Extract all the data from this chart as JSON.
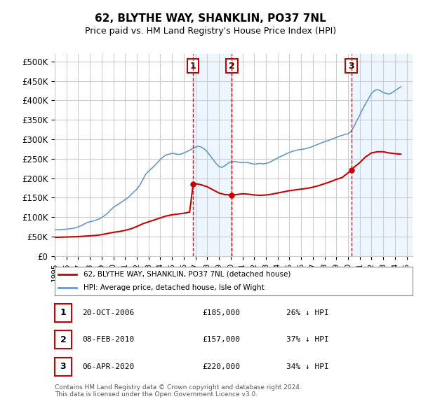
{
  "title": "62, BLYTHE WAY, SHANKLIN, PO37 7NL",
  "subtitle": "Price paid vs. HM Land Registry's House Price Index (HPI)",
  "ylabel_ticks": [
    "£0",
    "£50K",
    "£100K",
    "£150K",
    "£200K",
    "£250K",
    "£300K",
    "£350K",
    "£400K",
    "£450K",
    "£500K"
  ],
  "ytick_values": [
    0,
    50000,
    100000,
    150000,
    200000,
    250000,
    300000,
    350000,
    400000,
    450000,
    500000
  ],
  "ylim": [
    0,
    520000
  ],
  "xlim_start": 1995.0,
  "xlim_end": 2025.5,
  "transactions": [
    {
      "label": "1",
      "date": "20-OCT-2006",
      "price": 185000,
      "pct": "26%",
      "x": 2006.8
    },
    {
      "label": "2",
      "date": "08-FEB-2010",
      "price": 157000,
      "pct": "37%",
      "x": 2010.1
    },
    {
      "label": "3",
      "date": "06-APR-2020",
      "price": 220000,
      "pct": "34%",
      "x": 2020.27
    }
  ],
  "legend_property_label": "62, BLYTHE WAY, SHANKLIN, PO37 7NL (detached house)",
  "legend_hpi_label": "HPI: Average price, detached house, Isle of Wight",
  "footer": "Contains HM Land Registry data © Crown copyright and database right 2024.\nThis data is licensed under the Open Government Licence v3.0.",
  "property_color": "#cc0000",
  "hpi_color": "#6699cc",
  "background_color": "#ffffff",
  "plot_bg_color": "#ffffff",
  "grid_color": "#cccccc",
  "shade_color": "#ddeeff",
  "transaction_line_color": "#ff0000",
  "hpi_data_x": [
    1995.0,
    1995.25,
    1995.5,
    1995.75,
    1996.0,
    1996.25,
    1996.5,
    1996.75,
    1997.0,
    1997.25,
    1997.5,
    1997.75,
    1998.0,
    1998.25,
    1998.5,
    1998.75,
    1999.0,
    1999.25,
    1999.5,
    1999.75,
    2000.0,
    2000.25,
    2000.5,
    2000.75,
    2001.0,
    2001.25,
    2001.5,
    2001.75,
    2002.0,
    2002.25,
    2002.5,
    2002.75,
    2003.0,
    2003.25,
    2003.5,
    2003.75,
    2004.0,
    2004.25,
    2004.5,
    2004.75,
    2005.0,
    2005.25,
    2005.5,
    2005.75,
    2006.0,
    2006.25,
    2006.5,
    2006.75,
    2007.0,
    2007.25,
    2007.5,
    2007.75,
    2008.0,
    2008.25,
    2008.5,
    2008.75,
    2009.0,
    2009.25,
    2009.5,
    2009.75,
    2010.0,
    2010.25,
    2010.5,
    2010.75,
    2011.0,
    2011.25,
    2011.5,
    2011.75,
    2012.0,
    2012.25,
    2012.5,
    2012.75,
    2013.0,
    2013.25,
    2013.5,
    2013.75,
    2014.0,
    2014.25,
    2014.5,
    2014.75,
    2015.0,
    2015.25,
    2015.5,
    2015.75,
    2016.0,
    2016.25,
    2016.5,
    2016.75,
    2017.0,
    2017.25,
    2017.5,
    2017.75,
    2018.0,
    2018.25,
    2018.5,
    2018.75,
    2019.0,
    2019.25,
    2019.5,
    2019.75,
    2020.0,
    2020.25,
    2020.5,
    2020.75,
    2021.0,
    2021.25,
    2021.5,
    2021.75,
    2022.0,
    2022.25,
    2022.5,
    2022.75,
    2023.0,
    2023.25,
    2023.5,
    2023.75,
    2024.0,
    2024.25,
    2024.5
  ],
  "hpi_data_y": [
    68000,
    67500,
    68000,
    68500,
    69000,
    70000,
    71000,
    72500,
    75000,
    78000,
    82000,
    86000,
    88000,
    90000,
    92000,
    95000,
    99000,
    104000,
    110000,
    118000,
    125000,
    130000,
    135000,
    140000,
    145000,
    150000,
    158000,
    165000,
    172000,
    182000,
    196000,
    210000,
    218000,
    225000,
    232000,
    240000,
    248000,
    255000,
    260000,
    262000,
    264000,
    263000,
    261000,
    262000,
    265000,
    268000,
    272000,
    276000,
    280000,
    282000,
    280000,
    275000,
    268000,
    258000,
    248000,
    238000,
    230000,
    228000,
    232000,
    238000,
    242000,
    243000,
    242000,
    241000,
    240000,
    241000,
    240000,
    238000,
    236000,
    237000,
    238000,
    237000,
    238000,
    240000,
    244000,
    248000,
    252000,
    256000,
    259000,
    263000,
    266000,
    269000,
    271000,
    273000,
    274000,
    275000,
    277000,
    279000,
    282000,
    285000,
    288000,
    291000,
    294000,
    296000,
    299000,
    302000,
    305000,
    308000,
    310000,
    313000,
    314000,
    320000,
    333000,
    348000,
    362000,
    378000,
    392000,
    405000,
    418000,
    425000,
    428000,
    425000,
    420000,
    418000,
    416000,
    420000,
    425000,
    430000,
    435000
  ],
  "property_data_x": [
    1995.0,
    1995.5,
    1996.0,
    1996.5,
    1997.0,
    1997.5,
    1998.0,
    1998.5,
    1999.0,
    1999.5,
    2000.0,
    2000.5,
    2001.0,
    2001.5,
    2002.0,
    2002.5,
    2003.0,
    2003.5,
    2004.0,
    2004.5,
    2005.0,
    2005.5,
    2006.0,
    2006.5,
    2006.8,
    2007.0,
    2007.5,
    2008.0,
    2008.5,
    2009.0,
    2009.5,
    2010.1,
    2010.5,
    2011.0,
    2011.5,
    2012.0,
    2012.5,
    2013.0,
    2013.5,
    2014.0,
    2014.5,
    2015.0,
    2015.5,
    2016.0,
    2016.5,
    2017.0,
    2017.5,
    2018.0,
    2018.5,
    2019.0,
    2019.5,
    2020.27,
    2020.5,
    2021.0,
    2021.5,
    2022.0,
    2022.5,
    2023.0,
    2023.5,
    2024.0,
    2024.5
  ],
  "property_data_y": [
    48000,
    48500,
    49000,
    49500,
    50000,
    51000,
    52000,
    53000,
    55000,
    58000,
    61000,
    63000,
    66000,
    70000,
    76000,
    83000,
    88000,
    93000,
    98000,
    103000,
    106000,
    108000,
    110000,
    113000,
    185000,
    186000,
    183000,
    178000,
    170000,
    162000,
    158000,
    157000,
    158000,
    160000,
    159000,
    157000,
    156000,
    157000,
    159000,
    162000,
    165000,
    168000,
    170000,
    172000,
    174000,
    177000,
    181000,
    186000,
    191000,
    197000,
    202000,
    220000,
    228000,
    240000,
    255000,
    265000,
    268000,
    268000,
    265000,
    263000,
    262000
  ]
}
